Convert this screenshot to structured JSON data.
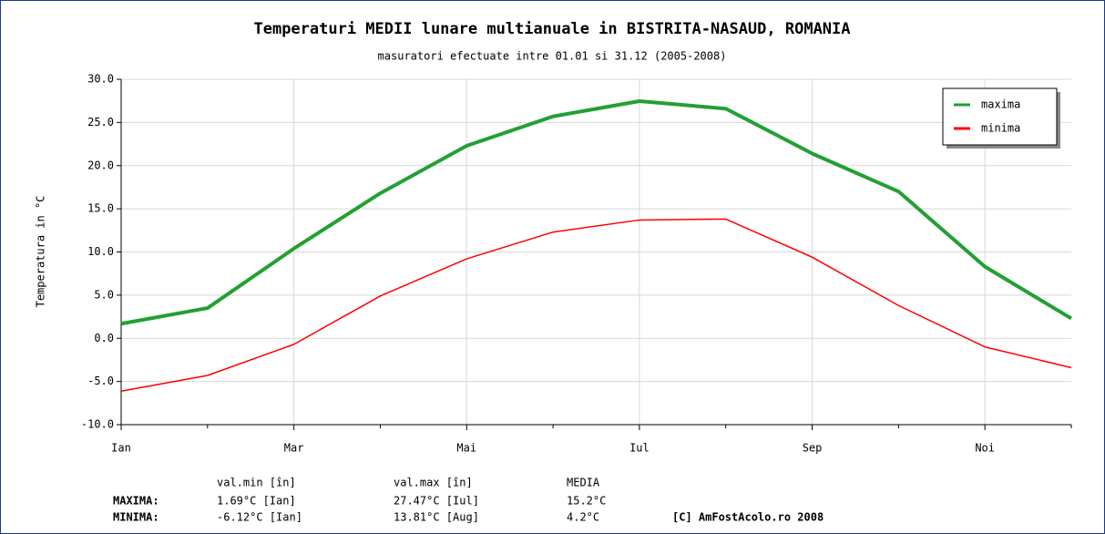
{
  "chart_data": {
    "type": "line",
    "title": "Temperaturi MEDII lunare multianuale in BISTRITA-NASAUD, ROMANIA",
    "subtitle": "masuratori efectuate intre 01.01 si 31.12 (2005-2008)",
    "y_label": "Temperatura in °C",
    "categories": [
      "Ian",
      null,
      "Mar",
      null,
      "Mai",
      null,
      "Iul",
      null,
      "Sep",
      null,
      "Noi",
      null
    ],
    "series": [
      {
        "name": "maxima",
        "color": "#22a033",
        "values": [
          1.69,
          3.5,
          10.4,
          16.8,
          22.3,
          25.7,
          27.47,
          26.6,
          21.4,
          17.0,
          8.3,
          2.3
        ]
      },
      {
        "name": "minima",
        "color": "#ff0000",
        "values": [
          -6.12,
          -4.3,
          -0.7,
          4.9,
          9.2,
          12.3,
          13.7,
          13.81,
          9.4,
          3.8,
          -1.0,
          -3.4
        ]
      }
    ],
    "ylim": [
      -10,
      30
    ],
    "yticks": [
      {
        "value": -10,
        "label": "-10.0"
      },
      {
        "value": -5,
        "label": "-5.0"
      },
      {
        "value": 0,
        "label": "0.0"
      },
      {
        "value": 5,
        "label": "5.0"
      },
      {
        "value": 10,
        "label": "10.0"
      },
      {
        "value": 15,
        "label": "15.0"
      },
      {
        "value": 20,
        "label": "20.0"
      },
      {
        "value": 25,
        "label": "25.0"
      },
      {
        "value": 30,
        "label": "30.0"
      }
    ],
    "grid": true,
    "legend": "upper right"
  },
  "stats": {
    "header": [
      "val.min [în]",
      "val.max [în]",
      "MEDIA"
    ],
    "rows": [
      {
        "label": "MAXIMA:",
        "color": "#22a033",
        "cells": [
          "1.69°C [Ian]",
          "27.47°C [Iul]",
          "15.2°C"
        ]
      },
      {
        "label": "MINIMA:",
        "color": "#ff0000",
        "cells": [
          "-6.12°C [Ian]",
          "13.81°C [Aug]",
          "4.2°C"
        ]
      }
    ],
    "credit": "[C] AmFostAcolo.ro 2008"
  }
}
